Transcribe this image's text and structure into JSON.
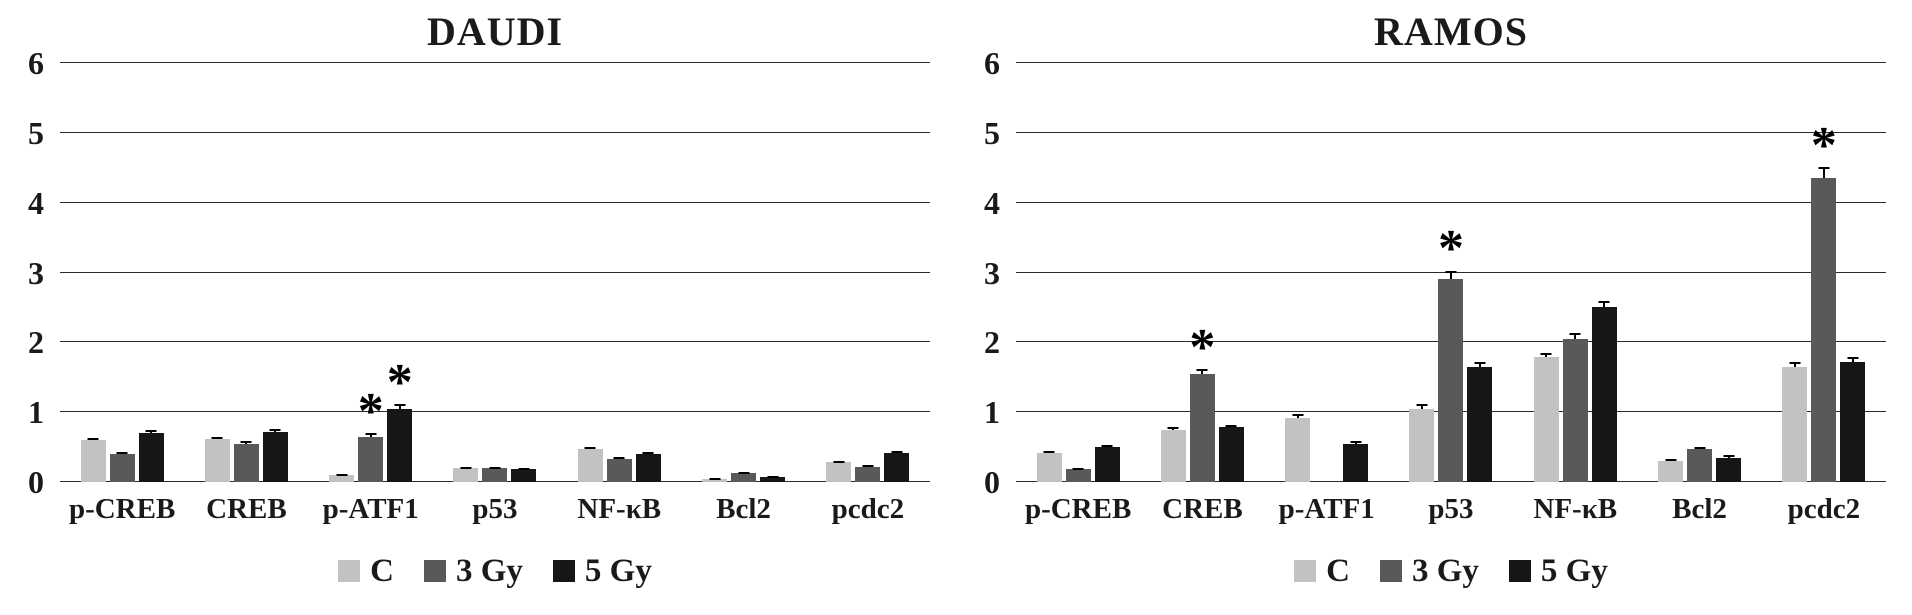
{
  "figure": {
    "background": "#ffffff"
  },
  "chart_data": [
    {
      "type": "bar",
      "title": "DAUDI",
      "categories": [
        "p-CREB",
        "CREB",
        "p-ATF1",
        "p53",
        "NF-κB",
        "Bcl2",
        "pcdc2"
      ],
      "series": [
        {
          "name": "C",
          "color": "#c2c2c2",
          "values": [
            0.6,
            0.62,
            0.1,
            0.2,
            0.47,
            0.05,
            0.28
          ],
          "errors": [
            0.03,
            0.03,
            0.02,
            0.02,
            0.03,
            0.01,
            0.02
          ]
        },
        {
          "name": "3 Gy",
          "color": "#595959",
          "values": [
            0.4,
            0.55,
            0.65,
            0.2,
            0.33,
            0.13,
            0.22
          ],
          "errors": [
            0.03,
            0.04,
            0.05,
            0.02,
            0.03,
            0.02,
            0.02
          ]
        },
        {
          "name": "5 Gy",
          "color": "#161616",
          "values": [
            0.7,
            0.72,
            1.05,
            0.18,
            0.4,
            0.07,
            0.42
          ],
          "errors": [
            0.04,
            0.04,
            0.06,
            0.02,
            0.03,
            0.01,
            0.03
          ]
        }
      ],
      "significance": [
        {
          "category": "p-ATF1",
          "series": "3 Gy",
          "text": "*"
        },
        {
          "category": "p-ATF1",
          "series": "5 Gy",
          "text": "*"
        }
      ],
      "ylim": [
        0,
        6
      ],
      "yticks": [
        0,
        1,
        2,
        3,
        4,
        5,
        6
      ],
      "grid": true,
      "legend_position": "bottom"
    },
    {
      "type": "bar",
      "title": "RAMOS",
      "categories": [
        "p-CREB",
        "CREB",
        "p-ATF1",
        "p53",
        "NF-κB",
        "Bcl2",
        "pcdc2"
      ],
      "series": [
        {
          "name": "C",
          "color": "#c2c2c2",
          "values": [
            0.42,
            0.75,
            0.92,
            1.05,
            1.78,
            0.3,
            1.65
          ],
          "errors": [
            0.03,
            0.04,
            0.05,
            0.06,
            0.06,
            0.03,
            0.06
          ]
        },
        {
          "name": "3 Gy",
          "color": "#595959",
          "values": [
            0.18,
            1.55,
            0,
            2.9,
            2.05,
            0.47,
            4.35
          ],
          "errors": [
            0.02,
            0.06,
            0,
            0.12,
            0.08,
            0.03,
            0.15
          ]
        },
        {
          "name": "5 Gy",
          "color": "#161616",
          "values": [
            0.5,
            0.78,
            0.55,
            1.65,
            2.5,
            0.35,
            1.72
          ],
          "errors": [
            0.03,
            0.04,
            0.03,
            0.06,
            0.08,
            0.03,
            0.06
          ]
        }
      ],
      "significance": [
        {
          "category": "CREB",
          "series": "3 Gy",
          "text": "*"
        },
        {
          "category": "p53",
          "series": "3 Gy",
          "text": "*"
        },
        {
          "category": "pcdc2",
          "series": "3 Gy",
          "text": "*"
        }
      ],
      "ylim": [
        0,
        6
      ],
      "yticks": [
        0,
        1,
        2,
        3,
        4,
        5,
        6
      ],
      "grid": true,
      "legend_position": "bottom"
    }
  ]
}
